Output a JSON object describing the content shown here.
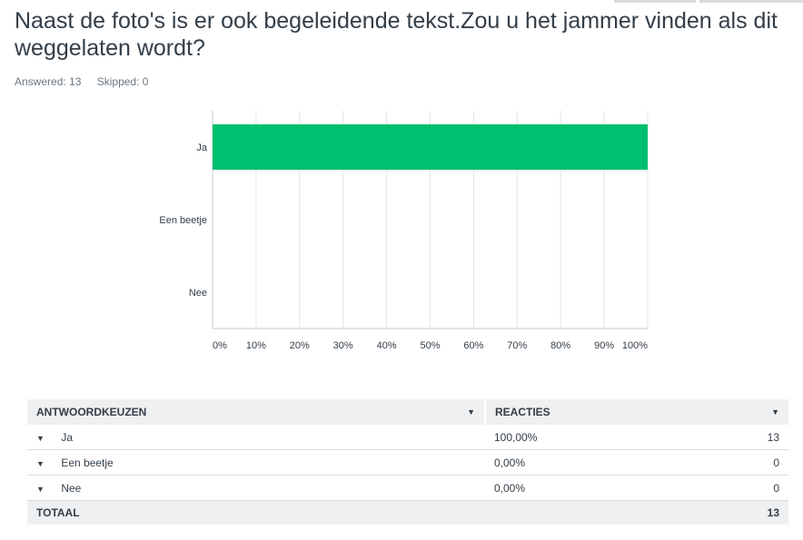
{
  "question": {
    "title": "Naast de foto's is er ook begeleidende tekst.Zou u het jammer vinden als dit weggelaten wordt?",
    "answered": "Answered: 13",
    "skipped": "Skipped: 0"
  },
  "colors": {
    "bar": "#00bf6f",
    "grid": "#e3e5e7",
    "axis": "#c8cbce",
    "header_bg": "#eff0f1"
  },
  "chart_data": {
    "type": "bar",
    "orientation": "horizontal",
    "categories": [
      "Ja",
      "Een beetje",
      "Nee"
    ],
    "values": [
      100,
      0,
      0
    ],
    "xlim": [
      0,
      100
    ],
    "x_ticks": [
      "0%",
      "10%",
      "20%",
      "30%",
      "40%",
      "50%",
      "60%",
      "70%",
      "80%",
      "90%",
      "100%"
    ],
    "grid": true
  },
  "table": {
    "headers": {
      "choice": "ANTWOORDKEUZEN",
      "responses": "REACTIES"
    },
    "rows": [
      {
        "choice": "Ja",
        "percent": "100,00%",
        "count": "13"
      },
      {
        "choice": "Een beetje",
        "percent": "0,00%",
        "count": "0"
      },
      {
        "choice": "Nee",
        "percent": "0,00%",
        "count": "0"
      }
    ],
    "total": {
      "label": "TOTAAL",
      "count": "13"
    }
  }
}
